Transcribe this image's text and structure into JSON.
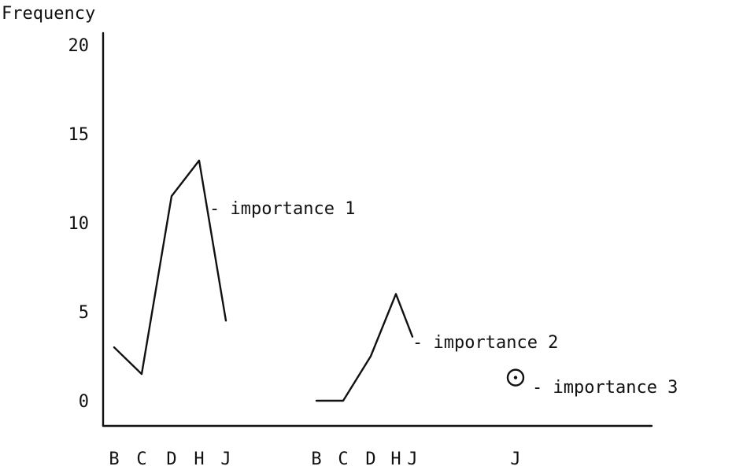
{
  "chart_data": {
    "type": "line",
    "ylabel": "Frequency",
    "xlabel": "",
    "ylim": [
      0,
      20
    ],
    "y_ticks": [
      0,
      5,
      10,
      15,
      20
    ],
    "grid": false,
    "series": [
      {
        "categories": [
          "B",
          "C",
          "D",
          "H",
          "J"
        ],
        "values": [
          3,
          1.5,
          11.5,
          13.5,
          4.5
        ],
        "annotation": "- importance 1"
      },
      {
        "categories": [
          "B",
          "C",
          "D",
          "H",
          "J"
        ],
        "values": [
          0,
          0,
          2.5,
          6,
          3.6
        ],
        "annotation": "- importance 2"
      },
      {
        "categories": [
          "J"
        ],
        "values": [
          1.3
        ],
        "annotation": "- importance 3"
      }
    ]
  }
}
